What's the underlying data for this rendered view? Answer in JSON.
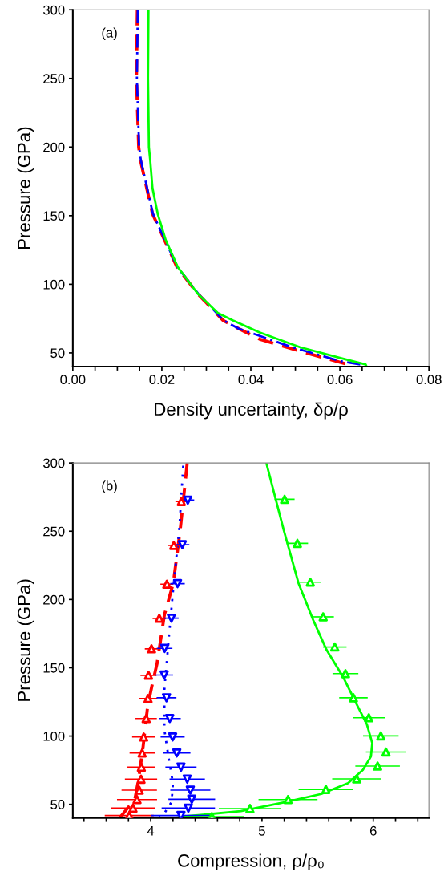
{
  "chart_data": [
    {
      "type": "line",
      "xlabel": "Density uncertainty, δρ/ρ",
      "ylabel": "Pressure (GPa)",
      "annotations": [
        "(a)"
      ],
      "xlim": [
        0,
        0.08
      ],
      "xticks": [
        {
          "value": 0,
          "label": "0.00"
        },
        {
          "value": 0.005,
          "label": null
        },
        {
          "value": 0.01,
          "label": null
        },
        {
          "value": 0.015,
          "label": null
        },
        {
          "value": 0.02,
          "label": "0.02"
        },
        {
          "value": 0.025,
          "label": null
        },
        {
          "value": 0.03,
          "label": null
        },
        {
          "value": 0.035,
          "label": null
        },
        {
          "value": 0.04,
          "label": "0.04"
        },
        {
          "value": 0.045,
          "label": null
        },
        {
          "value": 0.05,
          "label": null
        },
        {
          "value": 0.055,
          "label": null
        },
        {
          "value": 0.06,
          "label": "0.06"
        },
        {
          "value": 0.065,
          "label": null
        },
        {
          "value": 0.07,
          "label": null
        },
        {
          "value": 0.075,
          "label": null
        },
        {
          "value": 0.08,
          "label": "0.08"
        }
      ],
      "ylim": [
        40,
        300
      ],
      "yticks": [
        50,
        100,
        150,
        200,
        250,
        300
      ],
      "series": [
        {
          "type": "line",
          "color": "#ff0000",
          "line_style": "dashed",
          "x": [
            0.0145,
            0.0143,
            0.0148,
            0.0152,
            0.0179,
            0.0234,
            0.0281,
            0.0338,
            0.036,
            0.042,
            0.051,
            0.0619,
            0.063
          ],
          "values": [
            300,
            250,
            200,
            190.3,
            151.4,
            112.5,
            93,
            73.6,
            69.7,
            60,
            51.3,
            41.5,
            40
          ]
        },
        {
          "type": "line",
          "color": "#0000ff",
          "line_style": "dashdot",
          "x": [
            0.0146,
            0.0144,
            0.0149,
            0.0153,
            0.018,
            0.0235,
            0.0282,
            0.0339,
            0.0372,
            0.0492,
            0.06,
            0.0646,
            0.065
          ],
          "values": [
            300,
            250,
            200,
            190.3,
            151.4,
            112.5,
            93,
            73.6,
            67.8,
            54.2,
            44.1,
            41.5,
            40
          ]
        },
        {
          "type": "line",
          "color": "#00ff00",
          "line_style": "solid",
          "x": [
            0.017,
            0.0169,
            0.0171,
            0.0174,
            0.0179,
            0.0191,
            0.0209,
            0.0236,
            0.0281,
            0.0326,
            0.036,
            0.042,
            0.051,
            0.06,
            0.0658,
            0.066
          ],
          "values": [
            300,
            250,
            200,
            190,
            170,
            151,
            132,
            112.5,
            93,
            79,
            73.6,
            64.9,
            54.2,
            46.4,
            41.5,
            40
          ]
        }
      ]
    },
    {
      "type": "line",
      "xlabel": "Compression, ρ/ρ₀",
      "ylabel": "Pressure (GPa)",
      "annotations": [
        "(b)"
      ],
      "xlim": [
        3.3,
        6.5
      ],
      "xticks": [
        {
          "value": 3.4,
          "label": null
        },
        {
          "value": 3.6,
          "label": null
        },
        {
          "value": 3.8,
          "label": null
        },
        4,
        {
          "value": 4.2,
          "label": null
        },
        {
          "value": 4.4,
          "label": null
        },
        {
          "value": 4.6,
          "label": null
        },
        {
          "value": 4.8,
          "label": null
        },
        5,
        {
          "value": 5.2,
          "label": null
        },
        {
          "value": 5.4,
          "label": null
        },
        {
          "value": 5.6,
          "label": null
        },
        {
          "value": 5.8,
          "label": null
        },
        6,
        {
          "value": 6.2,
          "label": null
        },
        {
          "value": 6.4,
          "label": null
        }
      ],
      "ylim": [
        40,
        300
      ],
      "yticks": [
        50,
        100,
        150,
        200,
        250,
        300
      ],
      "series": [
        {
          "type": "line",
          "color": "#ff0000",
          "line_style": "dashed",
          "x": [
            4.328,
            4.265,
            4.203,
            4.123,
            4.058,
            4.014,
            3.973,
            3.93,
            3.889,
            3.858,
            3.72
          ],
          "values": [
            300,
            251,
            212,
            188.7,
            153.5,
            137.8,
            122,
            91,
            67.4,
            53.7,
            40
          ]
        },
        {
          "type": "line",
          "color": "#0000ff",
          "line_style": "dotted",
          "x": [
            4.292,
            4.256,
            4.207,
            4.164,
            4.123,
            4.123,
            4.159,
            4.2,
            4.188,
            4.111,
            4.07
          ],
          "values": [
            298,
            251,
            212,
            173,
            134,
            104.6,
            85,
            65.5,
            51.8,
            42,
            40
          ]
        },
        {
          "type": "line",
          "color": "#00ff00",
          "line_style": "solid",
          "x": [
            5.039,
            5.195,
            5.328,
            5.461,
            5.581,
            5.726,
            5.846,
            5.943,
            5.991,
            5.979,
            5.907,
            5.774,
            5.533,
            5.22,
            4.81,
            4.28,
            4.22
          ],
          "values": [
            300,
            251,
            212,
            184.8,
            163,
            143.7,
            124,
            108.5,
            94.8,
            85,
            75.2,
            65.5,
            57.6,
            51.8,
            45,
            41,
            40
          ]
        },
        {
          "type": "scatter",
          "color": "#ff0000",
          "marker": "triangle",
          "x": [
            4.275,
            4.207,
            4.145,
            4.077,
            4.007,
            3.98,
            3.976,
            3.959,
            3.937,
            3.923,
            3.916,
            3.913,
            3.897,
            3.877,
            3.841,
            3.807
          ],
          "values": [
            271.8,
            239.6,
            211.2,
            186.2,
            163.9,
            144.5,
            127.5,
            112.8,
            99.3,
            87.6,
            77.2,
            68.4,
            60.4,
            53.5,
            47.2,
            41.8
          ],
          "xerrors": [
            0.053,
            0.053,
            0.058,
            0.06,
            0.06,
            0.072,
            0.084,
            0.096,
            0.104,
            0.113,
            0.125,
            0.145,
            0.159,
            0.18,
            0.2,
            0.22
          ]
        },
        {
          "type": "scatter",
          "color": "#0000ff",
          "marker": "triangle_down",
          "x": [
            4.333,
            4.284,
            4.241,
            4.186,
            4.125,
            4.121,
            4.142,
            4.171,
            4.197,
            4.234,
            4.272,
            4.328,
            4.356,
            4.369,
            4.338,
            4.272
          ],
          "values": [
            272.8,
            240.1,
            211.6,
            186.3,
            164.2,
            144.7,
            128,
            112.8,
            99.3,
            87.6,
            77.2,
            68.4,
            60.4,
            53.7,
            47.2,
            41.8
          ],
          "xerrors": [
            0.058,
            0.063,
            0.065,
            0.065,
            0.07,
            0.08,
            0.089,
            0.099,
            0.108,
            0.123,
            0.14,
            0.159,
            0.18,
            0.21,
            0.24,
            0.27
          ]
        },
        {
          "type": "scatter",
          "color": "#00ff00",
          "marker": "triangle",
          "x": [
            5.203,
            5.318,
            5.434,
            5.55,
            5.654,
            5.75,
            5.822,
            5.96,
            6.068,
            6.114,
            6.039,
            5.851,
            5.574,
            5.234,
            4.892,
            4.55
          ],
          "values": [
            273.4,
            241.1,
            212.7,
            187.3,
            165.2,
            145.7,
            128,
            113.4,
            100.1,
            88.3,
            78,
            68.6,
            60.9,
            53.5,
            46.9,
            41
          ],
          "xerrors": [
            0.09,
            0.096,
            0.096,
            0.096,
            0.106,
            0.116,
            0.128,
            0.145,
            0.16,
            0.18,
            0.2,
            0.22,
            0.245,
            0.265,
            0.28,
            0.29
          ]
        }
      ]
    }
  ]
}
